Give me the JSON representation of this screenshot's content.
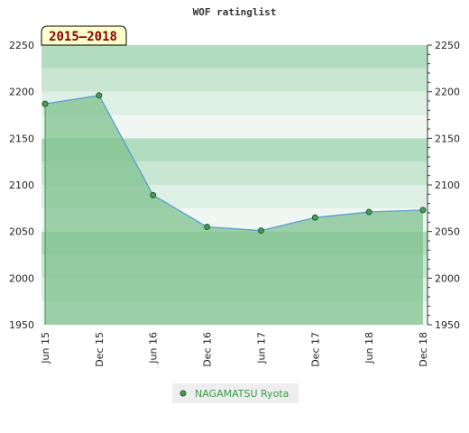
{
  "title": "WOF ratinglist",
  "badge": "2015–2018",
  "legend": {
    "entries": [
      "NAGAMATSU Ryota"
    ]
  },
  "colors": {
    "line": "#5b9bd5",
    "area": "#7fc28e",
    "point_fill": "#4a9a5a",
    "point_stroke": "#1f5f2a",
    "badge_bg": "#ffffcc",
    "legend_text": "#3a9a4a"
  },
  "chart_data": {
    "type": "area",
    "title": "WOF ratinglist",
    "xlabel": "",
    "ylabel": "",
    "categories": [
      "Jun 15",
      "Dec 15",
      "Jun 16",
      "Dec 16",
      "Jun 17",
      "Dec 17",
      "Jun 18",
      "Dec 18"
    ],
    "series": [
      {
        "name": "NAGAMATSU Ryota",
        "values": [
          2187,
          2196,
          2089,
          2055,
          2051,
          2065,
          2071,
          2073
        ]
      }
    ],
    "ylim": [
      1950,
      2250
    ],
    "yticks": [
      1950,
      2000,
      2050,
      2100,
      2150,
      2200,
      2250
    ],
    "grid": true,
    "legend_position": "bottom-center"
  }
}
